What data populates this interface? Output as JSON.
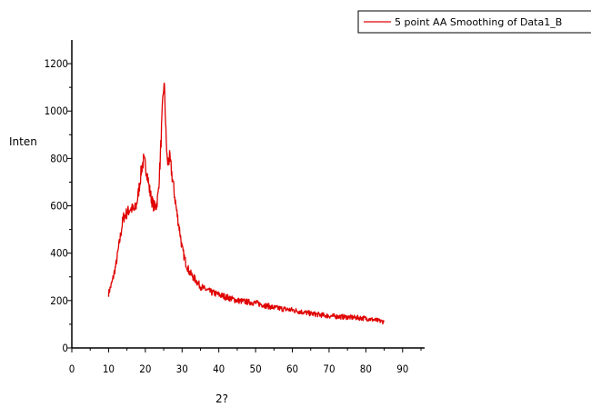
{
  "chart_data": {
    "type": "line",
    "xlabel": "2?",
    "ylabel": "Inten",
    "xlim": [
      0,
      95
    ],
    "ylim": [
      0,
      1300
    ],
    "xticks": [
      0,
      10,
      20,
      30,
      40,
      50,
      60,
      70,
      80,
      90
    ],
    "yticks": [
      0,
      200,
      400,
      600,
      800,
      1000,
      1200
    ],
    "grid": false,
    "legend_position": "top-right",
    "series": [
      {
        "name": "5 point AA Smoothing of Data1_B",
        "color": "#e00000",
        "x": [
          10,
          11,
          12,
          13,
          14,
          15,
          16,
          17,
          17.5,
          18,
          18.5,
          19,
          19.5,
          20,
          20.5,
          21,
          21.5,
          22,
          22.5,
          23,
          23.5,
          24,
          24.5,
          25,
          25.3,
          25.6,
          26,
          26.3,
          26.6,
          27,
          27.5,
          28,
          28.5,
          29,
          29.5,
          30,
          31,
          32,
          33,
          34,
          35,
          36,
          38,
          40,
          42,
          45,
          50,
          55,
          60,
          65,
          70,
          75,
          80,
          85
        ],
        "y": [
          230,
          280,
          350,
          450,
          550,
          570,
          590,
          580,
          600,
          640,
          700,
          760,
          790,
          770,
          740,
          680,
          640,
          610,
          595,
          600,
          650,
          780,
          950,
          1110,
          1070,
          900,
          780,
          790,
          800,
          760,
          700,
          640,
          580,
          530,
          480,
          420,
          360,
          320,
          300,
          280,
          260,
          250,
          235,
          225,
          215,
          200,
          190,
          170,
          160,
          145,
          135,
          130,
          125,
          110
        ]
      }
    ]
  }
}
